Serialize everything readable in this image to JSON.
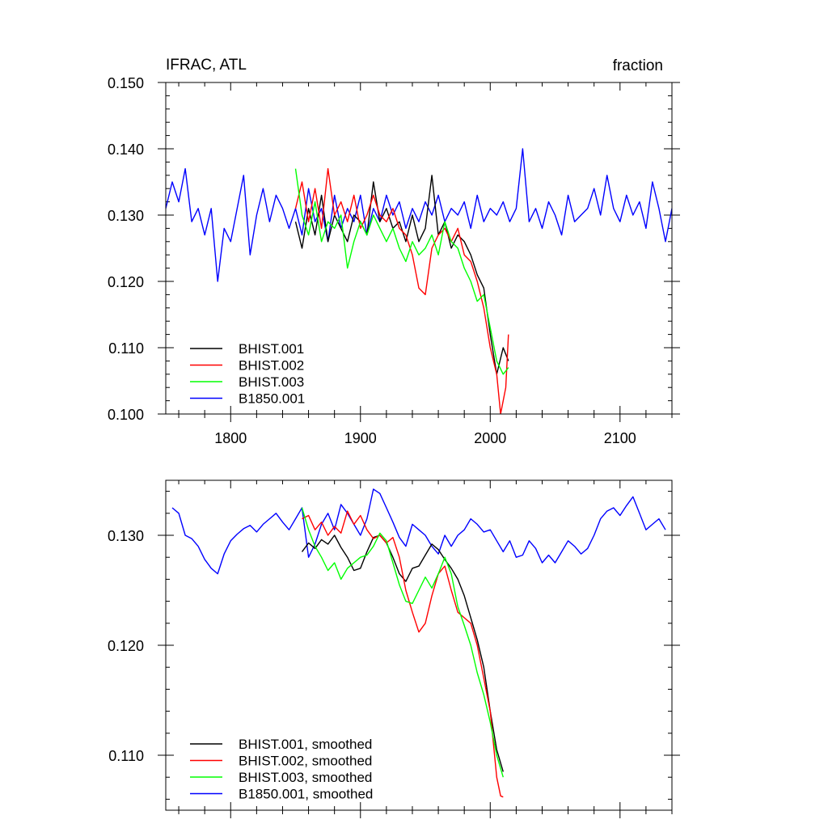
{
  "chart_data": [
    {
      "type": "line",
      "title": "IFRAC, ATL",
      "units_label": "fraction",
      "xlim": [
        1750,
        2140
      ],
      "ylim": [
        0.1,
        0.15
      ],
      "x_ticks": [
        1800,
        1900,
        2000,
        2100
      ],
      "x_tick_labels": [
        "1800",
        "1900",
        "2000",
        "2100"
      ],
      "y_ticks": [
        0.1,
        0.11,
        0.12,
        0.13,
        0.14,
        0.15
      ],
      "y_tick_labels": [
        "0.100",
        "0.110",
        "0.120",
        "0.130",
        "0.140",
        "0.150"
      ],
      "legend_position": "bottom-left",
      "series": [
        {
          "name": "BHIST.001",
          "color": "#000000",
          "x": [
            1850,
            1855,
            1860,
            1865,
            1870,
            1875,
            1880,
            1885,
            1890,
            1895,
            1900,
            1905,
            1910,
            1915,
            1920,
            1925,
            1930,
            1935,
            1940,
            1945,
            1950,
            1955,
            1960,
            1965,
            1970,
            1975,
            1980,
            1985,
            1990,
            1995,
            2000,
            2005,
            2010,
            2014
          ],
          "values": [
            0.129,
            0.125,
            0.131,
            0.127,
            0.133,
            0.126,
            0.13,
            0.128,
            0.126,
            0.13,
            0.129,
            0.127,
            0.135,
            0.129,
            0.131,
            0.128,
            0.129,
            0.126,
            0.13,
            0.126,
            0.128,
            0.136,
            0.127,
            0.129,
            0.125,
            0.127,
            0.126,
            0.124,
            0.121,
            0.119,
            0.112,
            0.106,
            0.11,
            0.108
          ]
        },
        {
          "name": "BHIST.002",
          "color": "#ff0000",
          "x": [
            1850,
            1855,
            1860,
            1865,
            1870,
            1875,
            1880,
            1885,
            1890,
            1895,
            1900,
            1905,
            1910,
            1915,
            1920,
            1925,
            1930,
            1935,
            1940,
            1945,
            1950,
            1955,
            1960,
            1965,
            1970,
            1975,
            1980,
            1985,
            1990,
            1995,
            2000,
            2005,
            2008,
            2012,
            2014
          ],
          "values": [
            0.131,
            0.135,
            0.129,
            0.134,
            0.128,
            0.137,
            0.13,
            0.132,
            0.129,
            0.133,
            0.128,
            0.13,
            0.133,
            0.13,
            0.129,
            0.131,
            0.128,
            0.127,
            0.124,
            0.119,
            0.118,
            0.125,
            0.127,
            0.128,
            0.126,
            0.128,
            0.124,
            0.123,
            0.12,
            0.116,
            0.11,
            0.106,
            0.1,
            0.104,
            0.112
          ]
        },
        {
          "name": "BHIST.003",
          "color": "#00ff00",
          "x": [
            1850,
            1855,
            1860,
            1865,
            1870,
            1875,
            1880,
            1885,
            1890,
            1895,
            1900,
            1905,
            1910,
            1915,
            1920,
            1925,
            1930,
            1935,
            1940,
            1945,
            1950,
            1955,
            1960,
            1965,
            1970,
            1975,
            1980,
            1985,
            1990,
            1995,
            2000,
            2005,
            2010,
            2014
          ],
          "values": [
            0.137,
            0.13,
            0.127,
            0.132,
            0.126,
            0.129,
            0.128,
            0.13,
            0.122,
            0.126,
            0.129,
            0.127,
            0.13,
            0.128,
            0.126,
            0.128,
            0.125,
            0.123,
            0.126,
            0.124,
            0.125,
            0.127,
            0.124,
            0.129,
            0.126,
            0.125,
            0.122,
            0.12,
            0.117,
            0.118,
            0.113,
            0.108,
            0.106,
            0.107
          ]
        },
        {
          "name": "B1850.001",
          "color": "#0000ff",
          "x": [
            1750,
            1755,
            1760,
            1765,
            1770,
            1775,
            1780,
            1785,
            1790,
            1795,
            1800,
            1805,
            1810,
            1815,
            1820,
            1825,
            1830,
            1835,
            1840,
            1845,
            1850,
            1855,
            1860,
            1865,
            1870,
            1875,
            1880,
            1885,
            1890,
            1895,
            1900,
            1905,
            1910,
            1915,
            1920,
            1925,
            1930,
            1935,
            1940,
            1945,
            1950,
            1955,
            1960,
            1965,
            1970,
            1975,
            1980,
            1985,
            1990,
            1995,
            2000,
            2005,
            2010,
            2015,
            2020,
            2025,
            2030,
            2035,
            2040,
            2045,
            2050,
            2055,
            2060,
            2065,
            2070,
            2075,
            2080,
            2085,
            2090,
            2095,
            2100,
            2105,
            2110,
            2115,
            2120,
            2125,
            2130,
            2135,
            2140
          ],
          "values": [
            0.131,
            0.135,
            0.132,
            0.137,
            0.129,
            0.131,
            0.127,
            0.131,
            0.12,
            0.128,
            0.126,
            0.131,
            0.136,
            0.124,
            0.13,
            0.134,
            0.129,
            0.133,
            0.131,
            0.128,
            0.131,
            0.127,
            0.134,
            0.129,
            0.131,
            0.126,
            0.133,
            0.128,
            0.131,
            0.129,
            0.133,
            0.127,
            0.131,
            0.129,
            0.133,
            0.13,
            0.132,
            0.128,
            0.131,
            0.129,
            0.132,
            0.13,
            0.133,
            0.129,
            0.131,
            0.13,
            0.132,
            0.128,
            0.133,
            0.129,
            0.131,
            0.13,
            0.132,
            0.129,
            0.131,
            0.14,
            0.129,
            0.131,
            0.128,
            0.132,
            0.13,
            0.127,
            0.133,
            0.129,
            0.13,
            0.131,
            0.134,
            0.13,
            0.136,
            0.131,
            0.129,
            0.133,
            0.13,
            0.132,
            0.128,
            0.135,
            0.131,
            0.126,
            0.131
          ]
        }
      ]
    },
    {
      "type": "line",
      "xlim": [
        1750,
        2140
      ],
      "ylim": [
        0.105,
        0.135
      ],
      "x_ticks": [
        1800,
        1900,
        2000,
        2100
      ],
      "y_ticks": [
        0.11,
        0.12,
        0.13
      ],
      "y_tick_labels": [
        "0.110",
        "0.120",
        "0.130"
      ],
      "legend_position": "bottom-left",
      "series": [
        {
          "name": "BHIST.001, smoothed",
          "color": "#000000",
          "x": [
            1855,
            1860,
            1865,
            1870,
            1875,
            1880,
            1885,
            1890,
            1895,
            1900,
            1905,
            1910,
            1915,
            1920,
            1925,
            1930,
            1935,
            1940,
            1945,
            1950,
            1955,
            1960,
            1965,
            1970,
            1975,
            1980,
            1985,
            1990,
            1995,
            2000,
            2005,
            2010
          ],
          "values": [
            0.1285,
            0.1293,
            0.1288,
            0.1296,
            0.1292,
            0.13,
            0.1289,
            0.128,
            0.1268,
            0.127,
            0.1285,
            0.1298,
            0.13,
            0.1293,
            0.128,
            0.1265,
            0.1258,
            0.127,
            0.1272,
            0.1282,
            0.1292,
            0.1287,
            0.1278,
            0.127,
            0.126,
            0.1245,
            0.1225,
            0.1205,
            0.118,
            0.114,
            0.1105,
            0.1085
          ]
        },
        {
          "name": "BHIST.002, smoothed",
          "color": "#ff0000",
          "x": [
            1855,
            1860,
            1865,
            1870,
            1875,
            1880,
            1885,
            1890,
            1895,
            1900,
            1905,
            1910,
            1915,
            1920,
            1925,
            1930,
            1935,
            1940,
            1945,
            1950,
            1955,
            1960,
            1965,
            1970,
            1975,
            1980,
            1985,
            1990,
            1995,
            2000,
            2005,
            2008,
            2010
          ],
          "values": [
            0.1315,
            0.1318,
            0.1305,
            0.1312,
            0.13,
            0.1308,
            0.1302,
            0.1322,
            0.131,
            0.1318,
            0.1305,
            0.1297,
            0.13,
            0.1293,
            0.1298,
            0.128,
            0.125,
            0.123,
            0.1212,
            0.122,
            0.1245,
            0.1265,
            0.1272,
            0.125,
            0.123,
            0.1225,
            0.122,
            0.12,
            0.117,
            0.114,
            0.108,
            0.1063,
            0.1062
          ]
        },
        {
          "name": "BHIST.003, smoothed",
          "color": "#00ff00",
          "x": [
            1855,
            1860,
            1865,
            1870,
            1875,
            1880,
            1885,
            1890,
            1895,
            1900,
            1905,
            1910,
            1915,
            1920,
            1925,
            1930,
            1935,
            1940,
            1945,
            1950,
            1955,
            1960,
            1965,
            1970,
            1975,
            1980,
            1985,
            1990,
            1995,
            2000,
            2005,
            2010
          ],
          "values": [
            0.1325,
            0.1305,
            0.129,
            0.128,
            0.1268,
            0.1275,
            0.126,
            0.127,
            0.1275,
            0.128,
            0.1282,
            0.129,
            0.1302,
            0.1295,
            0.1275,
            0.1255,
            0.124,
            0.1238,
            0.125,
            0.1262,
            0.1252,
            0.1265,
            0.128,
            0.1265,
            0.1235,
            0.1218,
            0.12,
            0.1175,
            0.1155,
            0.113,
            0.11,
            0.108
          ]
        },
        {
          "name": "B1850.001, smoothed",
          "color": "#0000ff",
          "x": [
            1755,
            1760,
            1765,
            1770,
            1775,
            1780,
            1785,
            1790,
            1795,
            1800,
            1805,
            1810,
            1815,
            1820,
            1825,
            1830,
            1835,
            1840,
            1845,
            1850,
            1855,
            1860,
            1865,
            1870,
            1875,
            1880,
            1885,
            1890,
            1895,
            1900,
            1905,
            1910,
            1915,
            1920,
            1925,
            1930,
            1935,
            1940,
            1945,
            1950,
            1955,
            1960,
            1965,
            1970,
            1975,
            1980,
            1985,
            1990,
            1995,
            2000,
            2005,
            2010,
            2015,
            2020,
            2025,
            2030,
            2035,
            2040,
            2045,
            2050,
            2055,
            2060,
            2065,
            2070,
            2075,
            2080,
            2085,
            2090,
            2095,
            2100,
            2105,
            2110,
            2115,
            2120,
            2125,
            2130,
            2135
          ],
          "values": [
            0.1325,
            0.132,
            0.13,
            0.1297,
            0.129,
            0.1278,
            0.127,
            0.1265,
            0.1283,
            0.1295,
            0.1301,
            0.1306,
            0.1309,
            0.1303,
            0.131,
            0.1315,
            0.132,
            0.1312,
            0.1305,
            0.1315,
            0.1325,
            0.128,
            0.1292,
            0.131,
            0.132,
            0.1305,
            0.1328,
            0.132,
            0.131,
            0.13,
            0.1315,
            0.1342,
            0.1338,
            0.1325,
            0.1312,
            0.1298,
            0.129,
            0.131,
            0.1305,
            0.13,
            0.129,
            0.1283,
            0.13,
            0.129,
            0.13,
            0.1305,
            0.1315,
            0.131,
            0.1303,
            0.1305,
            0.1295,
            0.1285,
            0.1295,
            0.128,
            0.1282,
            0.1295,
            0.1288,
            0.1275,
            0.1282,
            0.1275,
            0.1285,
            0.1295,
            0.129,
            0.1283,
            0.1288,
            0.13,
            0.1315,
            0.1322,
            0.1325,
            0.1318,
            0.1327,
            0.1335,
            0.132,
            0.1305,
            0.131,
            0.1315,
            0.1305
          ]
        }
      ]
    }
  ]
}
